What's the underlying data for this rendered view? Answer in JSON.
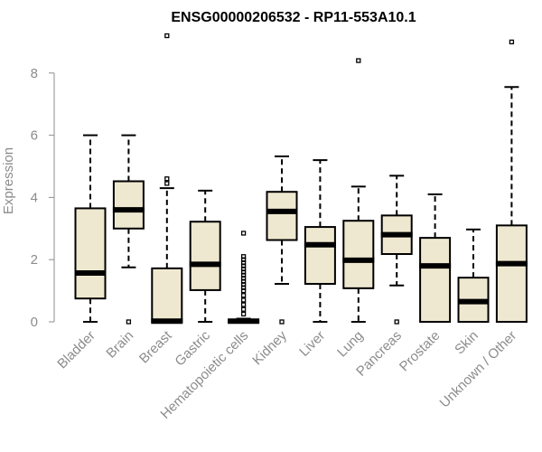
{
  "chart_data": {
    "type": "boxplot",
    "title": "ENSG00000206532 - RP11-553A10.1",
    "xlabel": "",
    "ylabel": "Expression",
    "ylim": [
      0,
      9.5
    ],
    "yticks": [
      0,
      2,
      4,
      6,
      8
    ],
    "box_fill": "#efe8d0",
    "box_stroke": "#000000",
    "series": [
      {
        "name": "Bladder",
        "whisker_low": 0,
        "q1": 0.75,
        "median": 1.57,
        "q3": 3.65,
        "whisker_high": 6.0,
        "outliers": []
      },
      {
        "name": "Brain",
        "whisker_low": 1.75,
        "q1": 3.0,
        "median": 3.6,
        "q3": 4.52,
        "whisker_high": 6.0,
        "outliers": [
          0
        ]
      },
      {
        "name": "Breast",
        "whisker_low": 0,
        "q1": 0,
        "median": 0.02,
        "q3": 1.72,
        "whisker_high": 4.3,
        "outliers": [
          4.45,
          4.6,
          9.2
        ]
      },
      {
        "name": "Gastric",
        "whisker_low": 0,
        "q1": 1.02,
        "median": 1.85,
        "q3": 3.22,
        "whisker_high": 4.22,
        "outliers": []
      },
      {
        "name": "Hematopoietic cells",
        "whisker_low": 0,
        "q1": 0,
        "median": 0.02,
        "q3": 0.05,
        "whisker_high": 0.1,
        "outliers": [
          0.25,
          0.4,
          0.55,
          0.7,
          0.85,
          1.0,
          1.1,
          1.2,
          1.3,
          1.4,
          1.5,
          1.6,
          1.7,
          1.8,
          1.9,
          2.0,
          2.1,
          2.85
        ]
      },
      {
        "name": "Kidney",
        "whisker_low": 1.22,
        "q1": 2.63,
        "median": 3.55,
        "q3": 4.18,
        "whisker_high": 5.32,
        "outliers": [
          0
        ]
      },
      {
        "name": "Liver",
        "whisker_low": 0,
        "q1": 1.22,
        "median": 2.48,
        "q3": 3.05,
        "whisker_high": 5.2,
        "outliers": []
      },
      {
        "name": "Lung",
        "whisker_low": 0,
        "q1": 1.08,
        "median": 1.98,
        "q3": 3.25,
        "whisker_high": 4.35,
        "outliers": [
          8.4
        ]
      },
      {
        "name": "Pancreas",
        "whisker_low": 1.17,
        "q1": 2.18,
        "median": 2.8,
        "q3": 3.42,
        "whisker_high": 4.7,
        "outliers": [
          0
        ]
      },
      {
        "name": "Prostate",
        "whisker_low": 0,
        "q1": 0,
        "median": 1.8,
        "q3": 2.7,
        "whisker_high": 4.1,
        "outliers": []
      },
      {
        "name": "Skin",
        "whisker_low": 0,
        "q1": 0,
        "median": 0.65,
        "q3": 1.42,
        "whisker_high": 2.97,
        "outliers": []
      },
      {
        "name": "Unknown / Other",
        "whisker_low": 0,
        "q1": 0,
        "median": 1.87,
        "q3": 3.1,
        "whisker_high": 7.55,
        "outliers": [
          9.0
        ]
      }
    ]
  }
}
